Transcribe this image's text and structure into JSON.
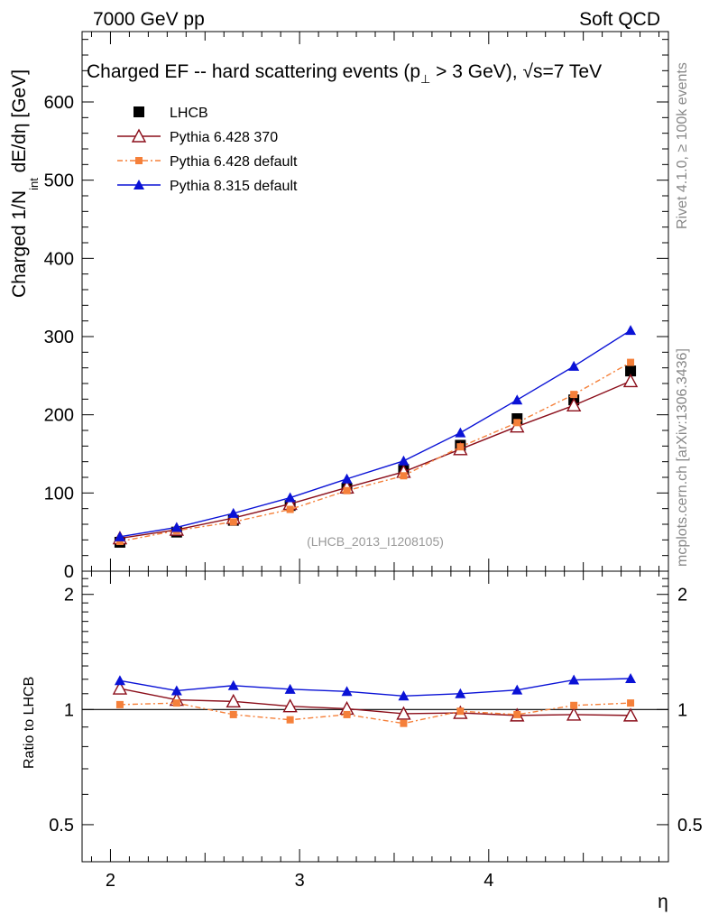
{
  "header": {
    "left": "7000 GeV pp",
    "right": "Soft QCD"
  },
  "side_labels": {
    "rivet": "Rivet 4.1.0, ≥ 100k events",
    "mcplots": "mcplots.cern.ch [arXiv:1306.3436]"
  },
  "chart_data": [
    {
      "type": "line",
      "title": "Charged EF -- hard scattering events (p⊥ > 3 GeV), √s=7 TeV",
      "title_parts": {
        "main": "Charged EF -- hard scattering events (p",
        "sub": "⊥",
        "tail": " > 3 GeV), √s=7 TeV"
      },
      "ylabel": "Charged 1/N_int dE/dη [GeV]",
      "ylabel_parts": {
        "a": "Charged 1/N",
        "sub": "int",
        "b": "  dE/dη [GeV]"
      },
      "xlabel": "η",
      "xlim": [
        1.85,
        4.95
      ],
      "ylim": [
        0,
        690
      ],
      "yticks": [
        "0",
        "100",
        "200",
        "300",
        "400",
        "500",
        "600"
      ],
      "watermark": "(LHCB_2013_I1208105)",
      "x": [
        2.05,
        2.35,
        2.65,
        2.95,
        3.25,
        3.55,
        3.85,
        4.15,
        4.45,
        4.75
      ],
      "series": [
        {
          "name": "LHCB",
          "color": "#000000",
          "marker": "square",
          "values": [
            37,
            50,
            65,
            84,
            106,
            130,
            161,
            195,
            219,
            256
          ]
        },
        {
          "name": "Pythia 6.428 370",
          "color": "#8b0e1a",
          "marker": "open-triangle",
          "values": [
            42,
            53,
            68,
            86,
            107,
            127,
            156,
            185,
            212,
            243
          ]
        },
        {
          "name": "Pythia 6.428 default",
          "color": "#f5803a",
          "marker": "small-square",
          "dash": true,
          "values": [
            38,
            52,
            63,
            79,
            103,
            122,
            159,
            190,
            226,
            267
          ]
        },
        {
          "name": "Pythia 8.315 default",
          "color": "#0a12d6",
          "marker": "triangle",
          "values": [
            44,
            56,
            74,
            94,
            118,
            141,
            177,
            219,
            262,
            308
          ]
        }
      ]
    },
    {
      "type": "line",
      "title": "",
      "ylabel": "Ratio to LHCB",
      "xlabel": "η",
      "xlim": [
        1.85,
        4.95
      ],
      "yscale": "log",
      "ylim": [
        0.4,
        2.3
      ],
      "yticks": [
        "0.5",
        "1",
        "2"
      ],
      "xticks": [
        "2",
        "3",
        "4"
      ],
      "x": [
        2.05,
        2.35,
        2.65,
        2.95,
        3.25,
        3.55,
        3.85,
        4.15,
        4.45,
        4.75
      ],
      "series": [
        {
          "name": "Pythia 6.428 370",
          "color": "#8b0e1a",
          "marker": "open-triangle",
          "values": [
            1.135,
            1.06,
            1.05,
            1.02,
            1.005,
            0.975,
            0.98,
            0.965,
            0.97,
            0.965
          ]
        },
        {
          "name": "Pythia 6.428 default",
          "color": "#f5803a",
          "marker": "small-square",
          "dash": true,
          "values": [
            1.03,
            1.04,
            0.97,
            0.94,
            0.97,
            0.92,
            0.99,
            0.97,
            1.025,
            1.04
          ]
        },
        {
          "name": "Pythia 8.315 default",
          "color": "#0a12d6",
          "marker": "triangle",
          "values": [
            1.19,
            1.12,
            1.155,
            1.13,
            1.115,
            1.085,
            1.1,
            1.125,
            1.195,
            1.205
          ]
        }
      ]
    }
  ]
}
